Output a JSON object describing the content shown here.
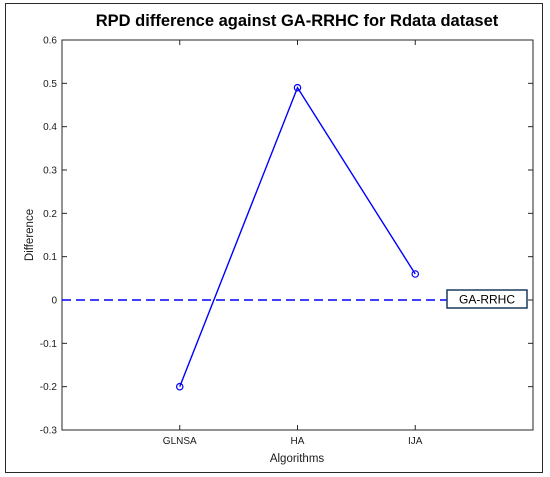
{
  "chart_data": {
    "type": "line",
    "title": "RPD difference against GA-RRHC for Rdata dataset",
    "xlabel": "Algorithms",
    "ylabel": "Difference",
    "categories": [
      "GLNSA",
      "HA",
      "IJA"
    ],
    "series": [
      {
        "values": [
          -0.2,
          0.49,
          0.06
        ],
        "color": "#0000ff",
        "marker": "circle"
      }
    ],
    "reference_line": {
      "y": 0,
      "style": "dashed",
      "color": "#0000ff",
      "label": "GA-RRHC"
    },
    "ylim": [
      -0.3,
      0.6
    ],
    "xlim": [
      0,
      4
    ],
    "y_ticks": [
      "-0.3",
      "-0.2",
      "-0.1",
      "0",
      "0.1",
      "0.2",
      "0.3",
      "0.4",
      "0.5",
      "0.6"
    ],
    "grid": false
  }
}
